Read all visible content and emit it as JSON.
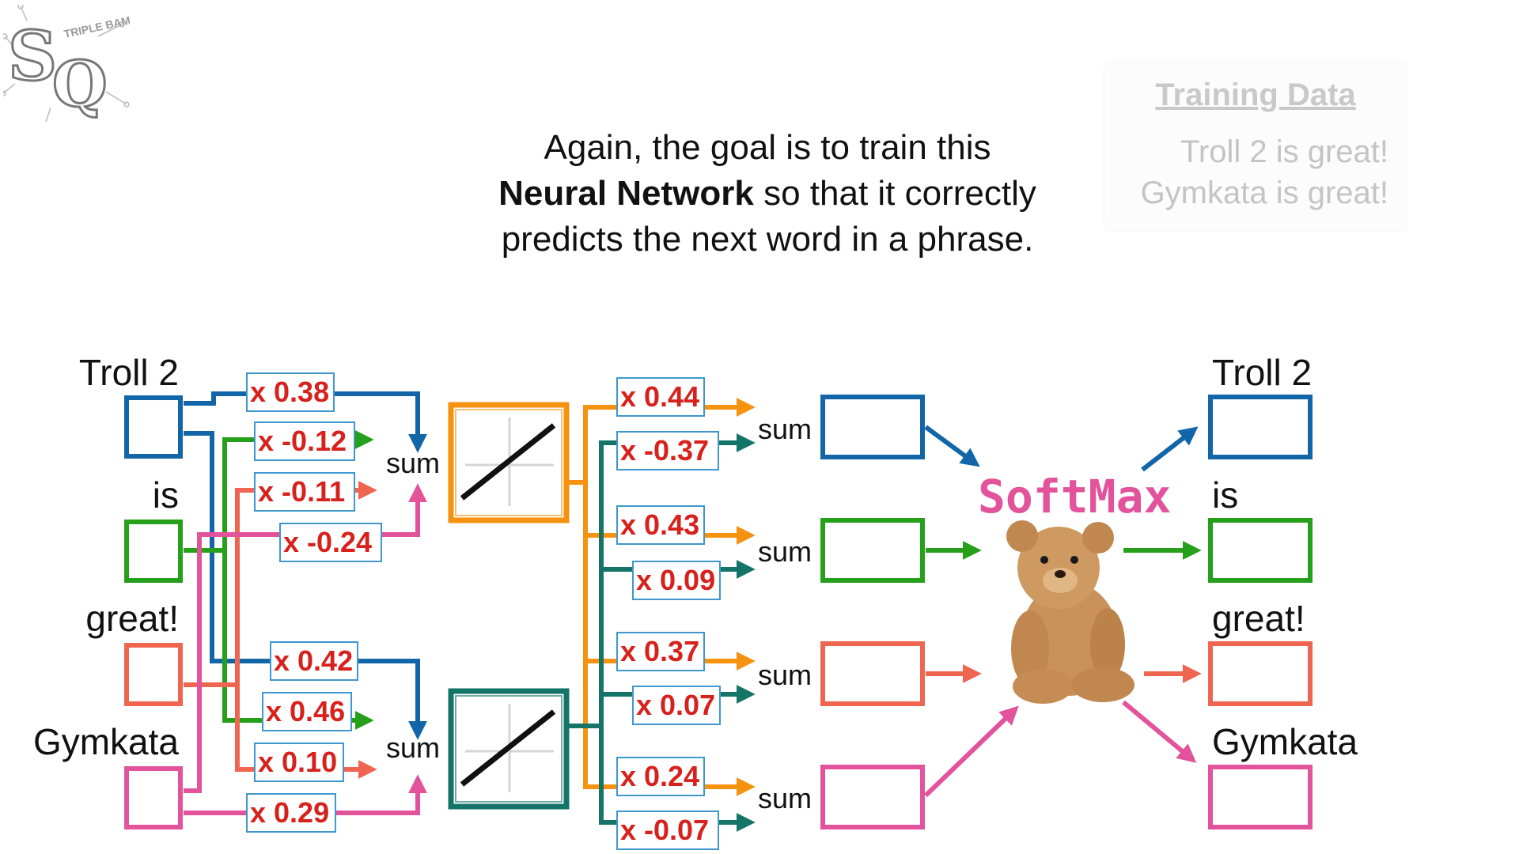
{
  "logo": {
    "letters": "SQ",
    "tagline": "TRIPLE BAM!!!"
  },
  "caption": {
    "line1": "Again, the goal is to train this",
    "line2_bold": "Neural Network",
    "line2_rest": " so that it correctly",
    "line3": "predicts the next word in a phrase."
  },
  "training_data": {
    "title": "Training Data",
    "lines": [
      "Troll 2 is great!",
      "Gymkata is great!"
    ]
  },
  "inputs": [
    "Troll 2",
    "is",
    "great!",
    "Gymkata"
  ],
  "outputs": [
    "Troll 2",
    "is",
    "great!",
    "Gymkata"
  ],
  "hidden_weights": [
    "x 0.38",
    "x -0.12",
    "x -0.11",
    "x -0.24",
    "x 0.42",
    "x 0.46",
    "x 0.10",
    "x 0.29"
  ],
  "output_weights": [
    "x 0.44",
    "x -0.37",
    "x 0.43",
    "x 0.09",
    "x 0.37",
    "x 0.07",
    "x 0.24",
    "x -0.07"
  ],
  "sum_label": "sum",
  "softmax_label": "SoftMax",
  "colors": {
    "blue": "#1266a8",
    "green": "#26a01a",
    "coral": "#f06550",
    "pink": "#e2539b",
    "orange": "#f5920f",
    "teal": "#147468",
    "weight_text": "#d7211c",
    "weight_border": "#3e97cf"
  }
}
